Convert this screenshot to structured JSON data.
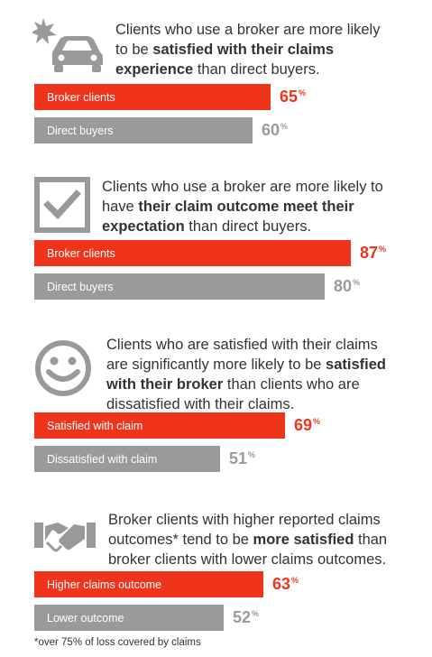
{
  "colors": {
    "accent": "#f0341b",
    "muted": "#9a9a9a",
    "icon": "#999999",
    "text": "#333333"
  },
  "sections": [
    {
      "icon": "car-crash-icon",
      "heading_parts": [
        {
          "text": "Clients who use a broker are more likely to be ",
          "bold": false
        },
        {
          "text": "satisfied with their claims experience",
          "bold": true
        },
        {
          "text": " than direct buyers.",
          "bold": false
        }
      ]
    },
    {
      "icon": "checkbox-icon",
      "heading_parts": [
        {
          "text": "Clients who use a broker are more likely to have ",
          "bold": false
        },
        {
          "text": "their claim outcome meet their expectation",
          "bold": true
        },
        {
          "text": " than direct buyers.",
          "bold": false
        }
      ]
    },
    {
      "icon": "smiley-icon",
      "heading_parts": [
        {
          "text": "Clients who are satisfied with their claims are significantly more likely to be ",
          "bold": false
        },
        {
          "text": "satisfied with their broker",
          "bold": true
        },
        {
          "text": " than clients who are dissatisfied with their claims.",
          "bold": false
        }
      ]
    },
    {
      "icon": "handshake-icon",
      "heading_parts": [
        {
          "text": "Broker clients with higher reported claims outcomes* tend to be ",
          "bold": false
        },
        {
          "text": "more satisfied",
          "bold": true
        },
        {
          "text": " than broker clients with lower claims outcomes.",
          "bold": false
        }
      ]
    }
  ],
  "chart_data": [
    {
      "type": "bar",
      "categories": [
        "Broker clients",
        "Direct buyers"
      ],
      "values": [
        65,
        60
      ],
      "unit": "%",
      "colors": [
        "#f0341b",
        "#9a9a9a"
      ]
    },
    {
      "type": "bar",
      "categories": [
        "Broker clients",
        "Direct buyers"
      ],
      "values": [
        87,
        80
      ],
      "unit": "%",
      "colors": [
        "#f0341b",
        "#9a9a9a"
      ]
    },
    {
      "type": "bar",
      "categories": [
        "Satisfied with claim",
        "Dissatisfied with claim"
      ],
      "values": [
        69,
        51
      ],
      "unit": "%",
      "colors": [
        "#f0341b",
        "#9a9a9a"
      ]
    },
    {
      "type": "bar",
      "categories": [
        "Higher claims outcome",
        "Lower outcome"
      ],
      "values": [
        63,
        52
      ],
      "unit": "%",
      "colors": [
        "#f0341b",
        "#9a9a9a"
      ]
    }
  ],
  "footnote": "*over 75% of loss covered by claims"
}
